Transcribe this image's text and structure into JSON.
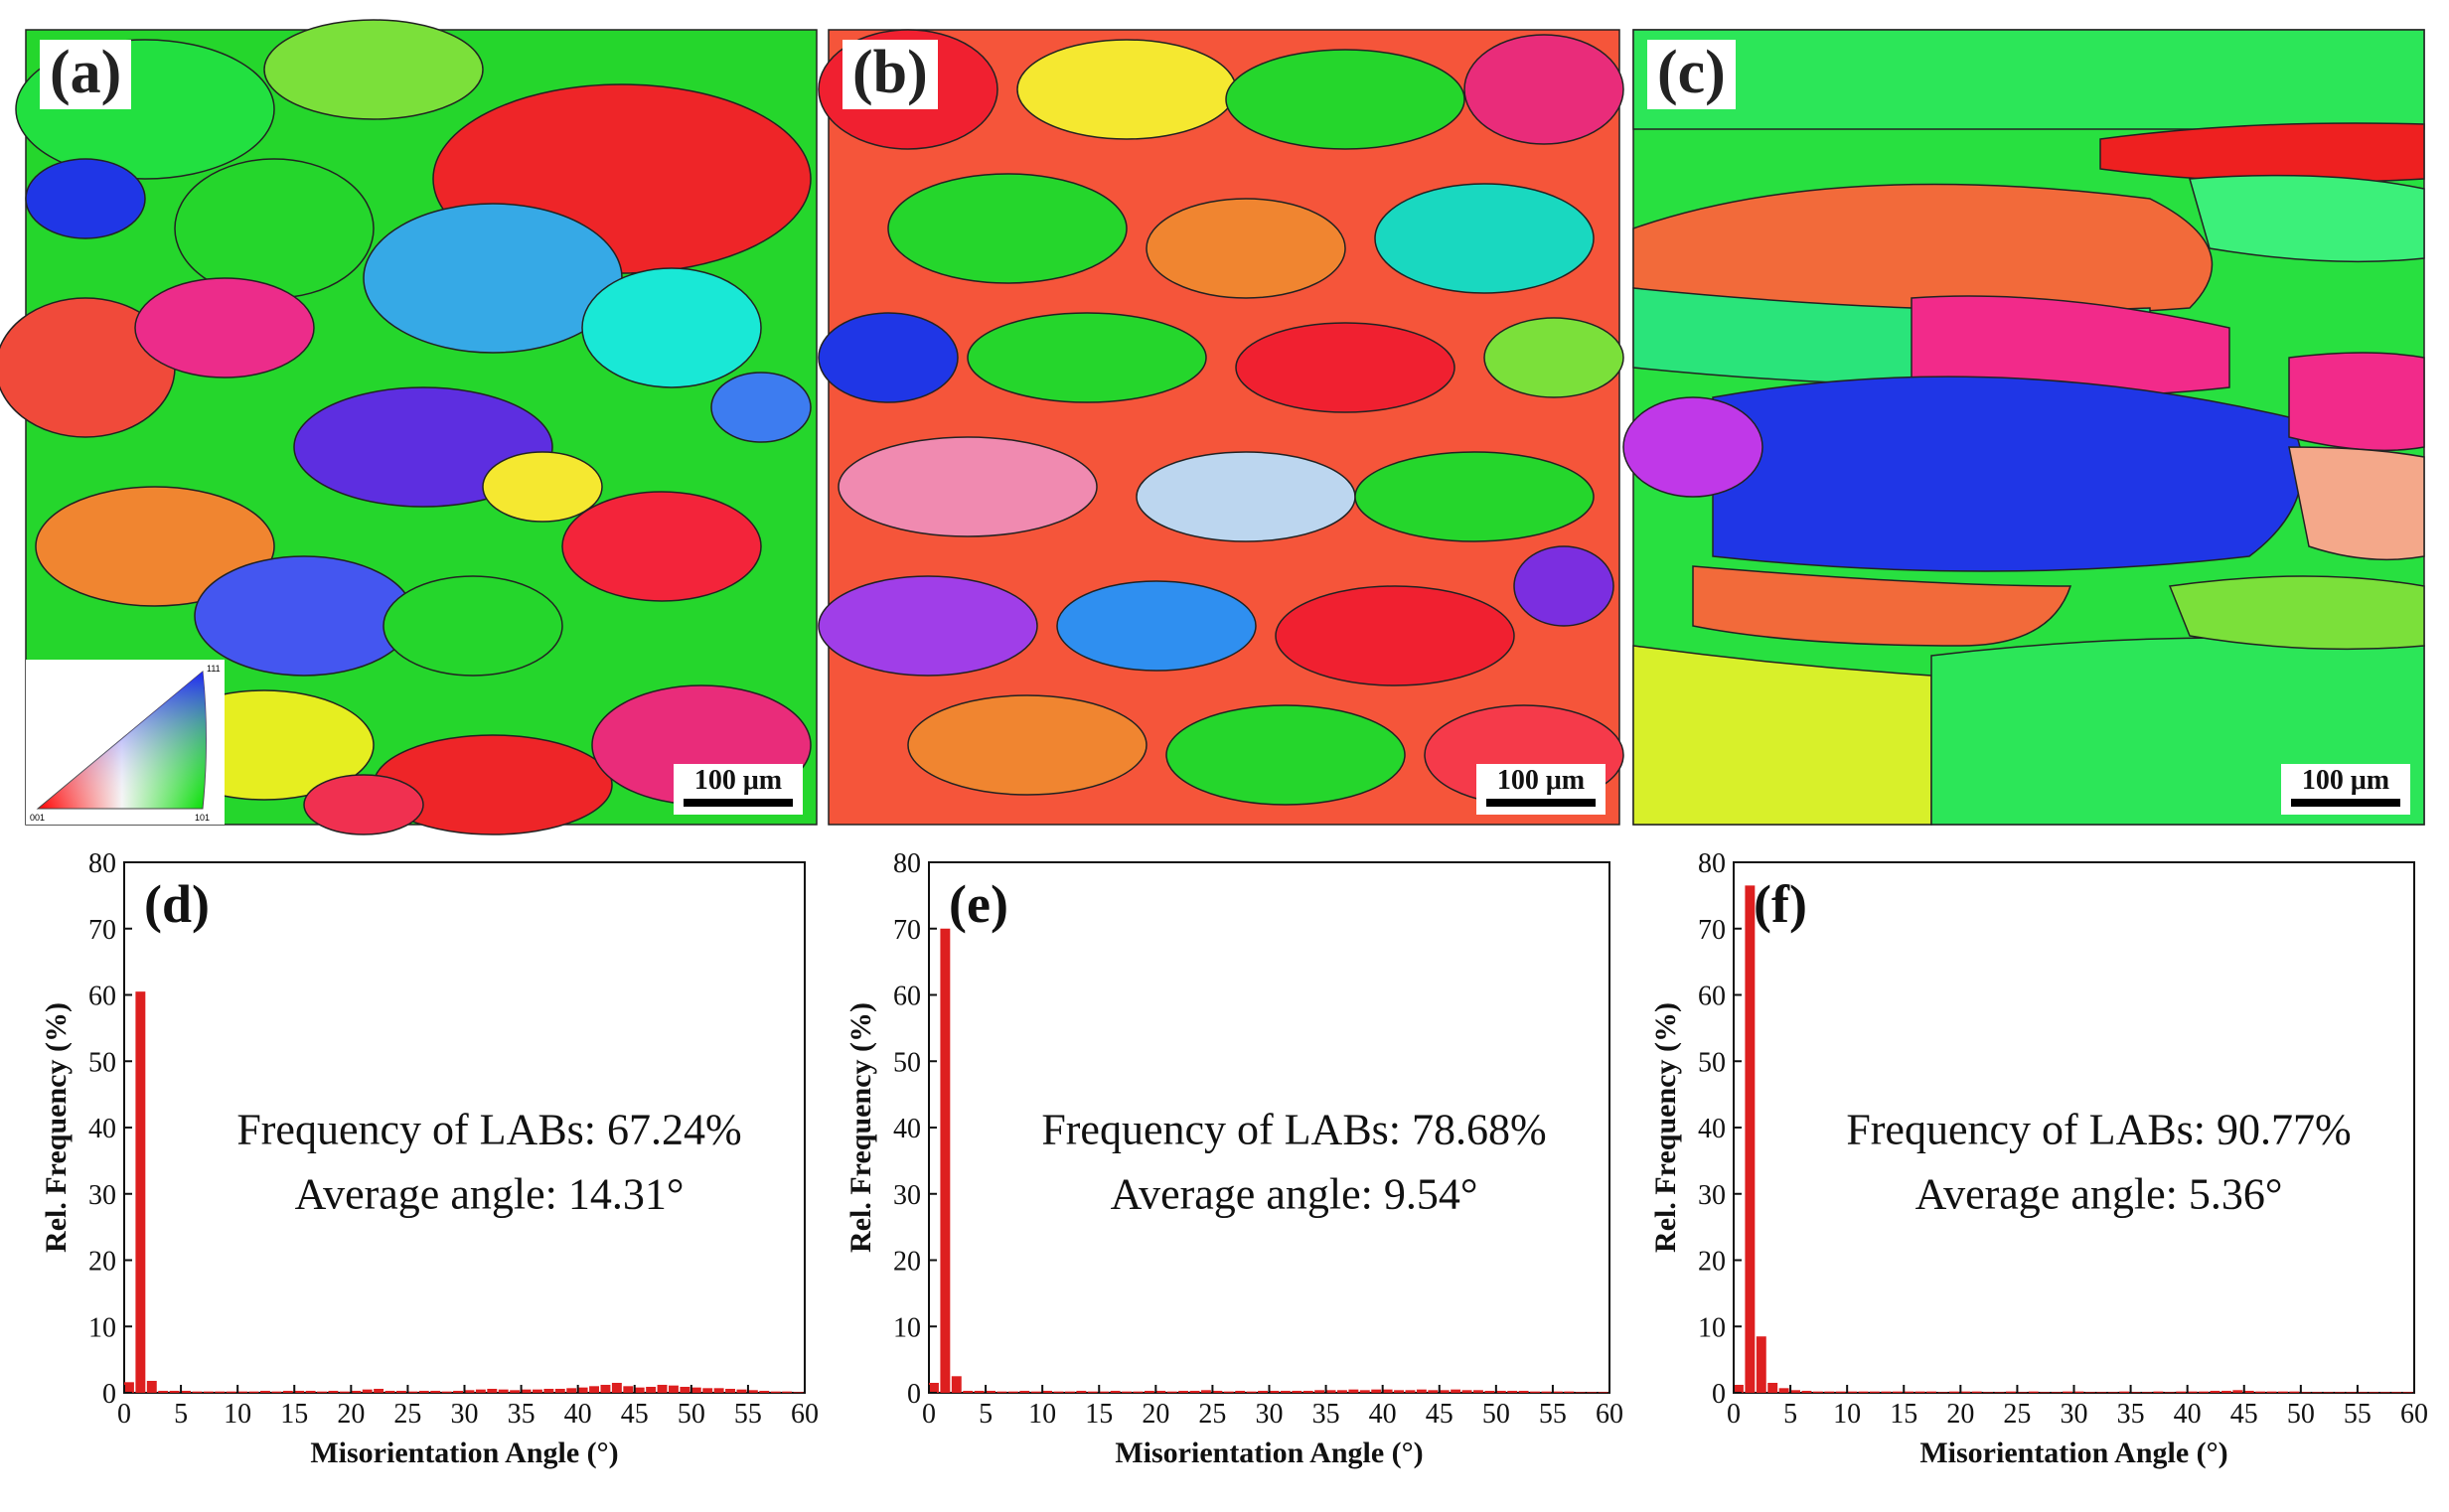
{
  "maps": [
    {
      "panel": "(a)",
      "scale": "100 μm",
      "ipf_key": {
        "c001": "001",
        "c101": "101",
        "c111": "111"
      }
    },
    {
      "panel": "(b)",
      "scale": "100 μm"
    },
    {
      "panel": "(c)",
      "scale": "100 μm"
    }
  ],
  "chart_data": [
    {
      "type": "bar",
      "panel": "(d)",
      "xlabel": "Misorientation Angle (°)",
      "ylabel": "Rel.  Frequency (%)",
      "xlim": [
        0,
        60
      ],
      "ylim": [
        0,
        80
      ],
      "xticks": [
        0,
        5,
        10,
        15,
        20,
        25,
        30,
        35,
        40,
        45,
        50,
        55,
        60
      ],
      "yticks": [
        0,
        10,
        20,
        30,
        40,
        50,
        60,
        70,
        80
      ],
      "annotation_line1": "Frequency of LABs: 67.24%",
      "annotation_line2": "Average angle: 14.31°",
      "bar_width": 1,
      "bins": [
        0.5,
        1.5,
        2.5,
        3.5,
        4.5,
        5.5,
        6.5,
        7.5,
        8.5,
        9.5,
        10.5,
        11.5,
        12.5,
        13.5,
        14.5,
        15.5,
        16.5,
        17.5,
        18.5,
        19.5,
        20.5,
        21.5,
        22.5,
        23.5,
        24.5,
        25.5,
        26.5,
        27.5,
        28.5,
        29.5,
        30.5,
        31.5,
        32.5,
        33.5,
        34.5,
        35.5,
        36.5,
        37.5,
        38.5,
        39.5,
        40.5,
        41.5,
        42.5,
        43.5,
        44.5,
        45.5,
        46.5,
        47.5,
        48.5,
        49.5,
        50.5,
        51.5,
        52.5,
        53.5,
        54.5,
        55.5,
        56.5,
        57.5,
        58.5,
        59.5
      ],
      "values": [
        1.6,
        60.5,
        1.8,
        0.3,
        0.3,
        0.3,
        0.2,
        0.2,
        0.2,
        0.2,
        0.2,
        0.2,
        0.3,
        0.2,
        0.3,
        0.3,
        0.3,
        0.2,
        0.3,
        0.2,
        0.3,
        0.5,
        0.6,
        0.3,
        0.3,
        0.2,
        0.3,
        0.3,
        0.2,
        0.3,
        0.4,
        0.5,
        0.6,
        0.5,
        0.4,
        0.5,
        0.5,
        0.6,
        0.6,
        0.7,
        0.8,
        1.0,
        1.2,
        1.5,
        1.0,
        0.8,
        0.9,
        1.2,
        1.1,
        0.9,
        0.8,
        0.7,
        0.7,
        0.6,
        0.5,
        0.4,
        0.3,
        0.2,
        0.2,
        0.1
      ]
    },
    {
      "type": "bar",
      "panel": "(e)",
      "xlabel": "Misorientation Angle (°)",
      "ylabel": "Rel.  Frequency (%)",
      "xlim": [
        0,
        60
      ],
      "ylim": [
        0,
        80
      ],
      "xticks": [
        0,
        5,
        10,
        15,
        20,
        25,
        30,
        35,
        40,
        45,
        50,
        55,
        60
      ],
      "yticks": [
        0,
        10,
        20,
        30,
        40,
        50,
        60,
        70,
        80
      ],
      "annotation_line1": "Frequency of LABs: 78.68%",
      "annotation_line2": "Average angle: 9.54°",
      "bar_width": 1,
      "bins": [
        0.5,
        1.5,
        2.5,
        3.5,
        4.5,
        5.5,
        6.5,
        7.5,
        8.5,
        9.5,
        10.5,
        11.5,
        12.5,
        13.5,
        14.5,
        15.5,
        16.5,
        17.5,
        18.5,
        19.5,
        20.5,
        21.5,
        22.5,
        23.5,
        24.5,
        25.5,
        26.5,
        27.5,
        28.5,
        29.5,
        30.5,
        31.5,
        32.5,
        33.5,
        34.5,
        35.5,
        36.5,
        37.5,
        38.5,
        39.5,
        40.5,
        41.5,
        42.5,
        43.5,
        44.5,
        45.5,
        46.5,
        47.5,
        48.5,
        49.5,
        50.5,
        51.5,
        52.5,
        53.5,
        54.5,
        55.5,
        56.5,
        57.5,
        58.5,
        59.5
      ],
      "values": [
        1.5,
        70.0,
        2.5,
        0.3,
        0.3,
        0.3,
        0.2,
        0.2,
        0.3,
        0.2,
        0.3,
        0.2,
        0.2,
        0.3,
        0.2,
        0.2,
        0.3,
        0.2,
        0.2,
        0.3,
        0.3,
        0.2,
        0.3,
        0.3,
        0.4,
        0.3,
        0.2,
        0.3,
        0.2,
        0.3,
        0.3,
        0.3,
        0.3,
        0.3,
        0.4,
        0.4,
        0.4,
        0.5,
        0.4,
        0.5,
        0.5,
        0.4,
        0.4,
        0.5,
        0.4,
        0.4,
        0.5,
        0.4,
        0.4,
        0.3,
        0.3,
        0.3,
        0.3,
        0.2,
        0.2,
        0.2,
        0.2,
        0.1,
        0.1,
        0.1
      ]
    },
    {
      "type": "bar",
      "panel": "(f)",
      "xlabel": "Misorientation Angle (°)",
      "ylabel": "Rel.  Frequency (%)",
      "xlim": [
        0,
        60
      ],
      "ylim": [
        0,
        80
      ],
      "xticks": [
        0,
        5,
        10,
        15,
        20,
        25,
        30,
        35,
        40,
        45,
        50,
        55,
        60
      ],
      "yticks": [
        0,
        10,
        20,
        30,
        40,
        50,
        60,
        70,
        80
      ],
      "annotation_line1": "Frequency of LABs: 90.77%",
      "annotation_line2": "Average angle: 5.36°",
      "bar_width": 1,
      "bins": [
        0.5,
        1.5,
        2.5,
        3.5,
        4.5,
        5.5,
        6.5,
        7.5,
        8.5,
        9.5,
        10.5,
        11.5,
        12.5,
        13.5,
        14.5,
        15.5,
        16.5,
        17.5,
        18.5,
        19.5,
        20.5,
        21.5,
        22.5,
        23.5,
        24.5,
        25.5,
        26.5,
        27.5,
        28.5,
        29.5,
        30.5,
        31.5,
        32.5,
        33.5,
        34.5,
        35.5,
        36.5,
        37.5,
        38.5,
        39.5,
        40.5,
        41.5,
        42.5,
        43.5,
        44.5,
        45.5,
        46.5,
        47.5,
        48.5,
        49.5,
        50.5,
        51.5,
        52.5,
        53.5,
        54.5,
        55.5,
        56.5,
        57.5,
        58.5,
        59.5
      ],
      "values": [
        1.2,
        76.5,
        8.5,
        1.5,
        0.7,
        0.4,
        0.3,
        0.2,
        0.2,
        0.2,
        0.2,
        0.2,
        0.2,
        0.2,
        0.2,
        0.2,
        0.2,
        0.2,
        0.1,
        0.2,
        0.2,
        0.2,
        0.1,
        0.1,
        0.2,
        0.1,
        0.2,
        0.1,
        0.1,
        0.2,
        0.2,
        0.1,
        0.1,
        0.1,
        0.2,
        0.1,
        0.1,
        0.2,
        0.1,
        0.2,
        0.2,
        0.2,
        0.3,
        0.3,
        0.4,
        0.3,
        0.2,
        0.2,
        0.2,
        0.2,
        0.1,
        0.1,
        0.1,
        0.1,
        0.1,
        0.1,
        0.1,
        0.1,
        0.1,
        0.1
      ]
    }
  ],
  "colors": {
    "bar": "#dd1f1f",
    "axis": "#111111"
  }
}
